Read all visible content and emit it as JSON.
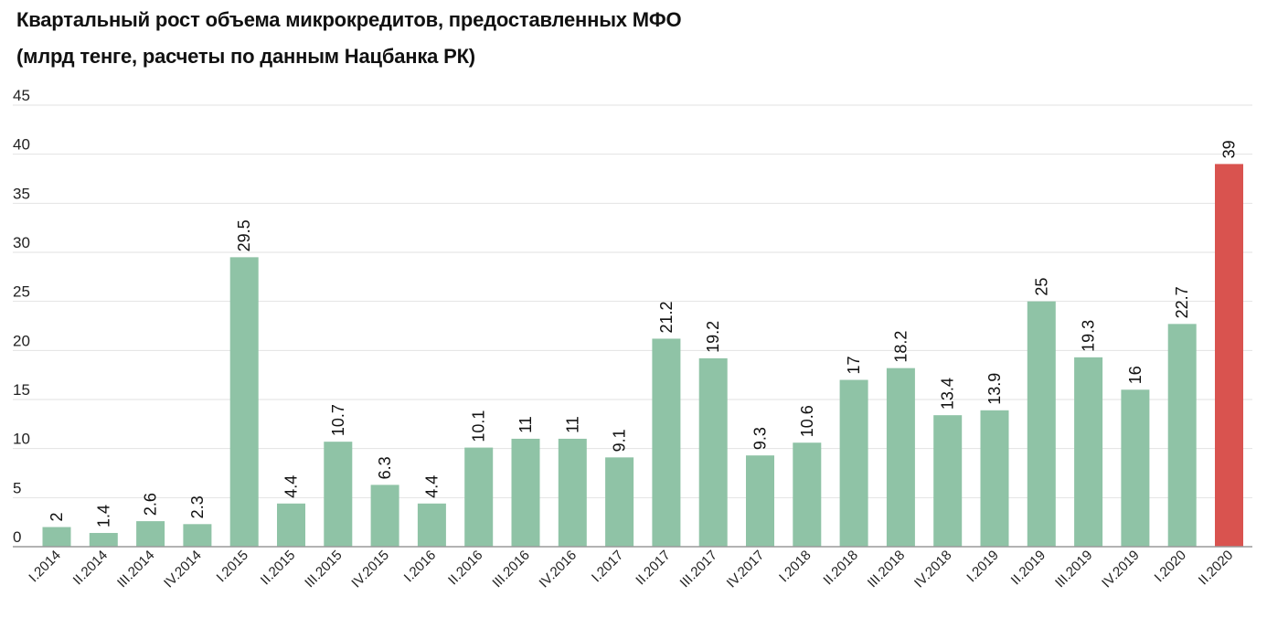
{
  "title_line1": "Квартальный рост объема микрокредитов, предоставленных МФО",
  "title_line2": "(млрд тенге, расчеты по данным Нацбанка РК)",
  "colors": {
    "bar": "#8fc3a6",
    "highlight": "#d9534f",
    "grid": "#e2e2e2",
    "axis": "#9a9a9a"
  },
  "chart_data": {
    "type": "bar",
    "title": "Квартальный рост объема микрокредитов, предоставленных МФО (млрд тенге, расчеты по данным Нацбанка РК)",
    "xlabel": "",
    "ylabel": "",
    "ylim": [
      0,
      45
    ],
    "yticks": [
      0,
      5,
      10,
      15,
      20,
      25,
      30,
      35,
      40,
      45
    ],
    "grid": true,
    "legend": "none",
    "categories": [
      "I.2014",
      "II.2014",
      "III.2014",
      "IV.2014",
      "I.2015",
      "II.2015",
      "III.2015",
      "IV.2015",
      "I.2016",
      "II.2016",
      "III.2016",
      "IV.2016",
      "I.2017",
      "II.2017",
      "III.2017",
      "IV.2017",
      "I.2018",
      "II.2018",
      "III.2018",
      "IV.2018",
      "I.2019",
      "II.2019",
      "III.2019",
      "IV.2019",
      "I.2020",
      "II.2020"
    ],
    "values": [
      2,
      1.4,
      2.6,
      2.3,
      29.5,
      4.4,
      10.7,
      6.3,
      4.4,
      10.1,
      11,
      11,
      9.1,
      21.2,
      19.2,
      9.3,
      10.6,
      17,
      18.2,
      13.4,
      13.9,
      25,
      19.3,
      16,
      22.7,
      39
    ],
    "value_labels": [
      "2",
      "1.4",
      "2.6",
      "2.3",
      "29.5",
      "4.4",
      "10.7",
      "6.3",
      "4.4",
      "10.1",
      "11",
      "11",
      "9.1",
      "21.2",
      "19.2",
      "9.3",
      "10.6",
      "17",
      "18.2",
      "13.4",
      "13.9",
      "25",
      "19.3",
      "16",
      "22.7",
      "39"
    ],
    "highlight_index": 25
  }
}
